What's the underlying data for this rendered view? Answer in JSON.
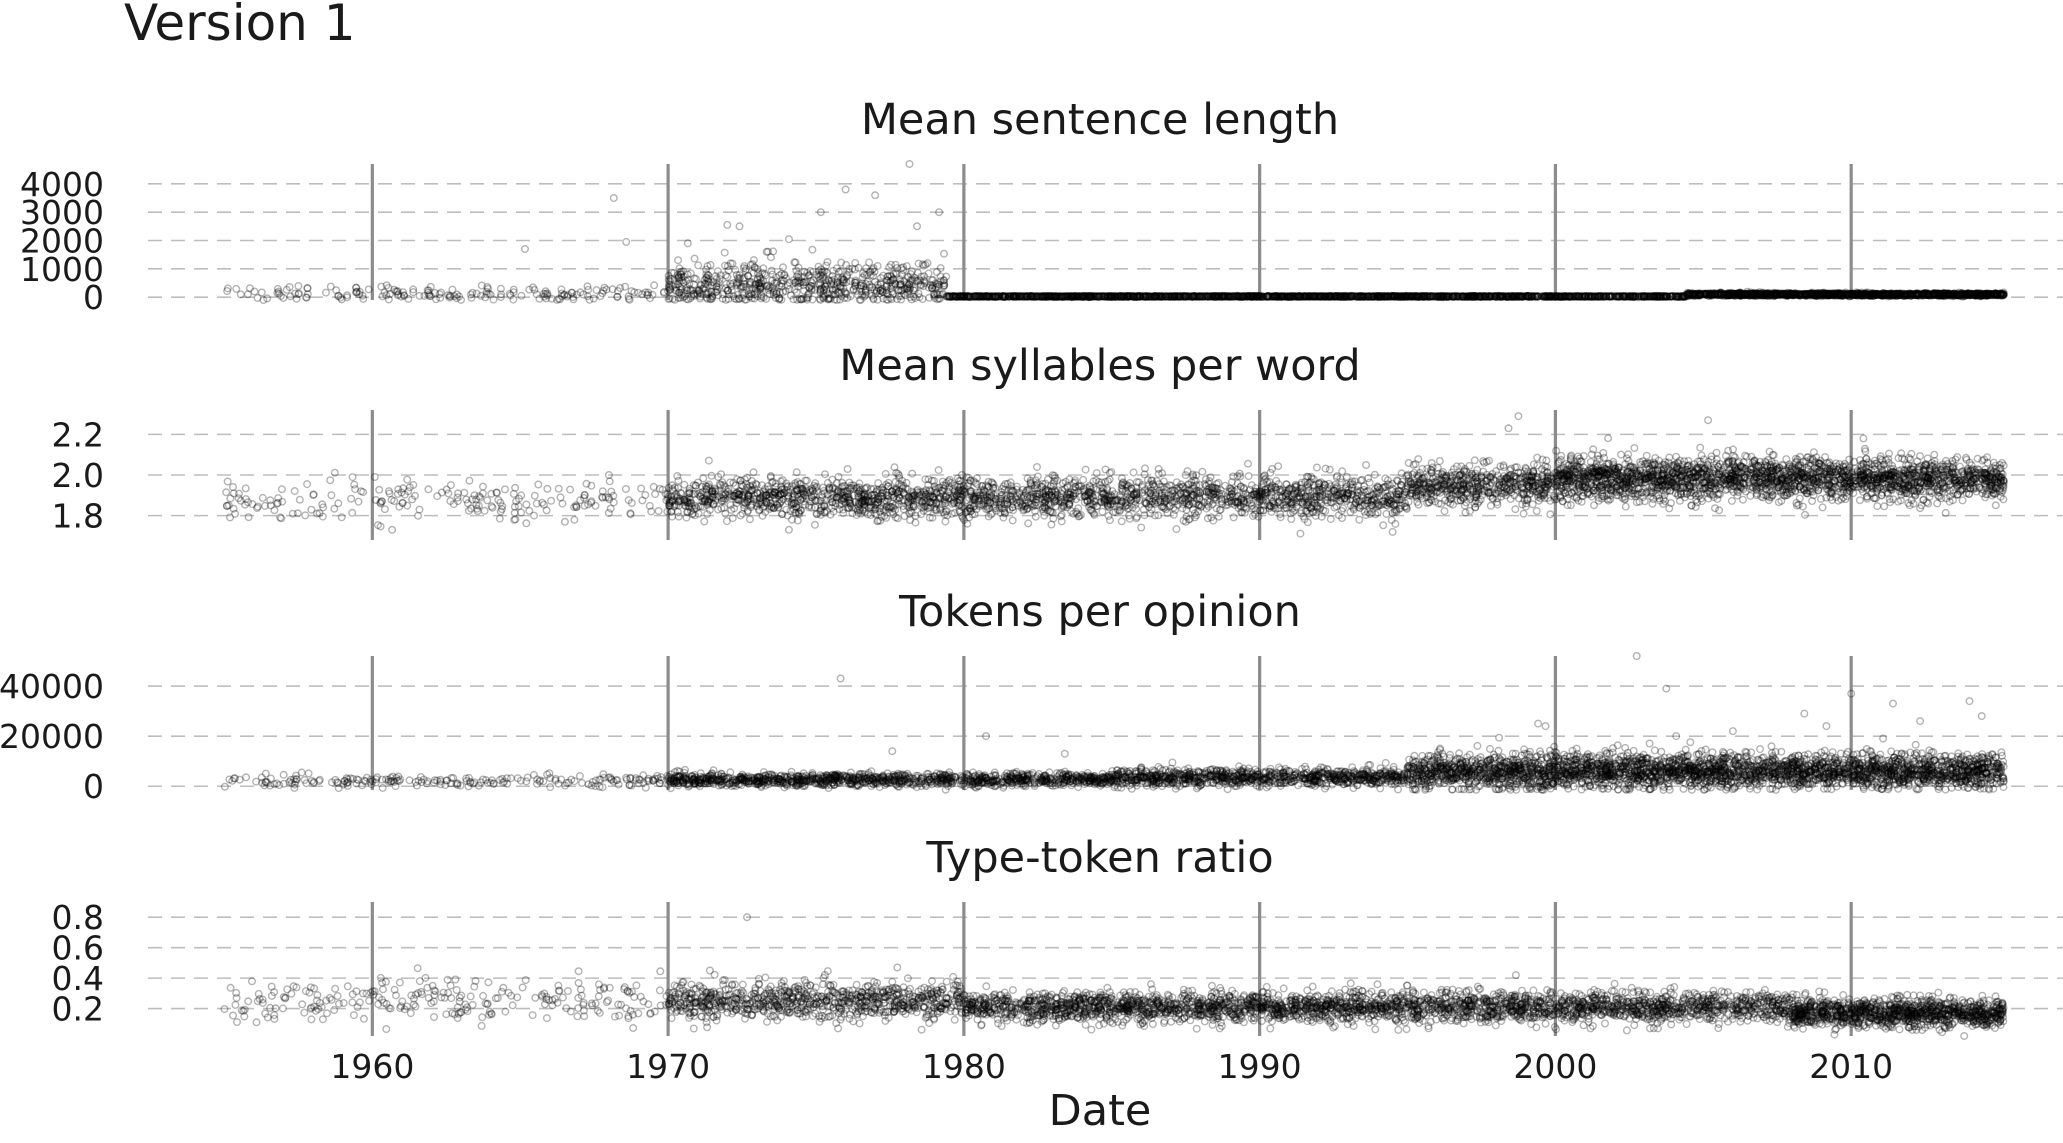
{
  "figure_title": "Version 1",
  "chart_data": [
    {
      "type": "scatter",
      "title": "Mean sentence length",
      "xlabel": "Date",
      "ylabel": "",
      "xlim": [
        "1952-06-01",
        "2017-03-01"
      ],
      "ylim": [
        -100,
        4700
      ],
      "yticks": [
        0,
        1000,
        2000,
        3000,
        4000
      ],
      "ytick_labels": [
        "0",
        "1000",
        "2000",
        "3000",
        "4000"
      ],
      "grid": true,
      "density": [
        {
          "from": "1955-01-01",
          "to": "1970-01-01",
          "level": 110,
          "spread": 130,
          "per_year": 12
        },
        {
          "from": "1970-01-01",
          "to": "1979-06-01",
          "level": 420,
          "spread": 380,
          "per_year": 70
        },
        {
          "from": "1979-06-01",
          "to": "2004-06-01",
          "level": 25,
          "spread": 8,
          "per_year": 90
        },
        {
          "from": "2004-06-01",
          "to": "2015-03-01",
          "level": 95,
          "spread": 25,
          "per_year": 140
        }
      ],
      "outliers": [
        {
          "x": "1968-03-01",
          "y": 3500
        },
        {
          "x": "1968-08-01",
          "y": 1950
        },
        {
          "x": "1970-09-01",
          "y": 1900
        },
        {
          "x": "1972-01-01",
          "y": 2550
        },
        {
          "x": "1972-06-01",
          "y": 2500
        },
        {
          "x": "1975-03-01",
          "y": 3000
        },
        {
          "x": "1976-01-01",
          "y": 3800
        },
        {
          "x": "1977-01-01",
          "y": 3600
        },
        {
          "x": "1978-03-01",
          "y": 4700
        },
        {
          "x": "1978-06-01",
          "y": 2500
        },
        {
          "x": "1979-03-01",
          "y": 3000
        },
        {
          "x": "1965-03-01",
          "y": 1700
        },
        {
          "x": "1974-02-01",
          "y": 2050
        },
        {
          "x": "1973-05-01",
          "y": 1600
        }
      ]
    },
    {
      "type": "scatter",
      "title": "Mean syllables per word",
      "xlabel": "Date",
      "ylabel": "",
      "xlim": [
        "1952-06-01",
        "2017-03-01"
      ],
      "ylim": [
        1.68,
        2.32
      ],
      "yticks": [
        1.8,
        2.0,
        2.2
      ],
      "ytick_labels": [
        "1.8",
        "2.0",
        "2.2"
      ],
      "grid": true,
      "density": [
        {
          "from": "1955-01-01",
          "to": "1970-01-01",
          "level": 1.87,
          "spread": 0.05,
          "per_year": 14
        },
        {
          "from": "1970-01-01",
          "to": "1995-01-01",
          "level": 1.89,
          "spread": 0.05,
          "per_year": 90
        },
        {
          "from": "1995-01-01",
          "to": "2000-01-01",
          "level": 1.95,
          "spread": 0.05,
          "per_year": 110
        },
        {
          "from": "2000-01-01",
          "to": "2015-03-01",
          "level": 1.98,
          "spread": 0.05,
          "per_year": 150
        }
      ],
      "outliers": [
        {
          "x": "1998-10-01",
          "y": 2.29
        },
        {
          "x": "1998-06-01",
          "y": 2.23
        },
        {
          "x": "2005-03-01",
          "y": 2.27
        },
        {
          "x": "1960-02-01",
          "y": 1.99
        },
        {
          "x": "1968-01-01",
          "y": 2.0
        },
        {
          "x": "1994-07-01",
          "y": 1.72
        },
        {
          "x": "1960-09-01",
          "y": 1.73
        },
        {
          "x": "1974-02-01",
          "y": 1.73
        },
        {
          "x": "2010-06-01",
          "y": 2.18
        }
      ]
    },
    {
      "type": "scatter",
      "title": "Tokens per opinion",
      "xlabel": "Date",
      "ylabel": "",
      "xlim": [
        "1952-06-01",
        "2017-03-01"
      ],
      "ylim": [
        -1500,
        52000
      ],
      "yticks": [
        0,
        20000,
        40000
      ],
      "ytick_labels": [
        "0",
        "20000",
        "40000"
      ],
      "grid": true,
      "density": [
        {
          "from": "1955-01-01",
          "to": "1970-01-01",
          "level": 2000,
          "spread": 1200,
          "per_year": 14
        },
        {
          "from": "1970-01-01",
          "to": "1985-01-01",
          "level": 2600,
          "spread": 1300,
          "per_year": 80
        },
        {
          "from": "1985-01-01",
          "to": "1995-01-01",
          "level": 3500,
          "spread": 1700,
          "per_year": 90
        },
        {
          "from": "1995-01-01",
          "to": "2015-03-01",
          "level": 6000,
          "spread": 3500,
          "per_year": 150
        }
      ],
      "outliers": [
        {
          "x": "2002-10-01",
          "y": 52000
        },
        {
          "x": "1975-11-01",
          "y": 43000
        },
        {
          "x": "2003-10-01",
          "y": 39000
        },
        {
          "x": "2010-01-01",
          "y": 37000
        },
        {
          "x": "2014-01-01",
          "y": 34000
        },
        {
          "x": "2011-06-01",
          "y": 33000
        },
        {
          "x": "1999-06-01",
          "y": 25000
        },
        {
          "x": "1999-09-01",
          "y": 24000
        },
        {
          "x": "2008-06-01",
          "y": 29000
        },
        {
          "x": "2014-06-01",
          "y": 28000
        },
        {
          "x": "1980-10-01",
          "y": 20000
        },
        {
          "x": "1983-06-01",
          "y": 13000
        },
        {
          "x": "2006-01-01",
          "y": 22000
        },
        {
          "x": "2012-05-01",
          "y": 26000
        },
        {
          "x": "1977-08-01",
          "y": 14000
        },
        {
          "x": "2009-03-01",
          "y": 24000
        },
        {
          "x": "2004-02-01",
          "y": 20000
        }
      ]
    },
    {
      "type": "scatter",
      "title": "Type-token ratio",
      "xlabel": "Date",
      "ylabel": "",
      "xlim": [
        "1952-06-01",
        "2017-03-01"
      ],
      "ylim": [
        0.02,
        0.9
      ],
      "yticks": [
        0.2,
        0.4,
        0.6,
        0.8
      ],
      "ytick_labels": [
        "0.2",
        "0.4",
        "0.6",
        "0.8"
      ],
      "grid": true,
      "xticks": [
        "1960-01-01",
        "1970-01-01",
        "1980-01-01",
        "1990-01-01",
        "2000-01-01",
        "2010-01-01"
      ],
      "xtick_labels": [
        "1960",
        "1970",
        "1980",
        "1990",
        "2000",
        "2010"
      ],
      "density": [
        {
          "from": "1955-01-01",
          "to": "1970-01-01",
          "level": 0.25,
          "spread": 0.07,
          "per_year": 16
        },
        {
          "from": "1970-01-01",
          "to": "1980-01-01",
          "level": 0.25,
          "spread": 0.06,
          "per_year": 80
        },
        {
          "from": "1980-01-01",
          "to": "2008-01-01",
          "level": 0.21,
          "spread": 0.05,
          "per_year": 100
        },
        {
          "from": "2008-01-01",
          "to": "2015-03-01",
          "level": 0.17,
          "spread": 0.045,
          "per_year": 150
        }
      ],
      "outliers": [
        {
          "x": "1972-09-01",
          "y": 0.8
        },
        {
          "x": "1977-10-01",
          "y": 0.47
        },
        {
          "x": "1971-06-01",
          "y": 0.45
        },
        {
          "x": "1998-09-01",
          "y": 0.42
        },
        {
          "x": "1975-10-01",
          "y": 0.07
        },
        {
          "x": "1958-05-01",
          "y": 0.13
        },
        {
          "x": "1960-05-01",
          "y": 0.37
        },
        {
          "x": "1956-02-01",
          "y": 0.11
        }
      ]
    }
  ]
}
